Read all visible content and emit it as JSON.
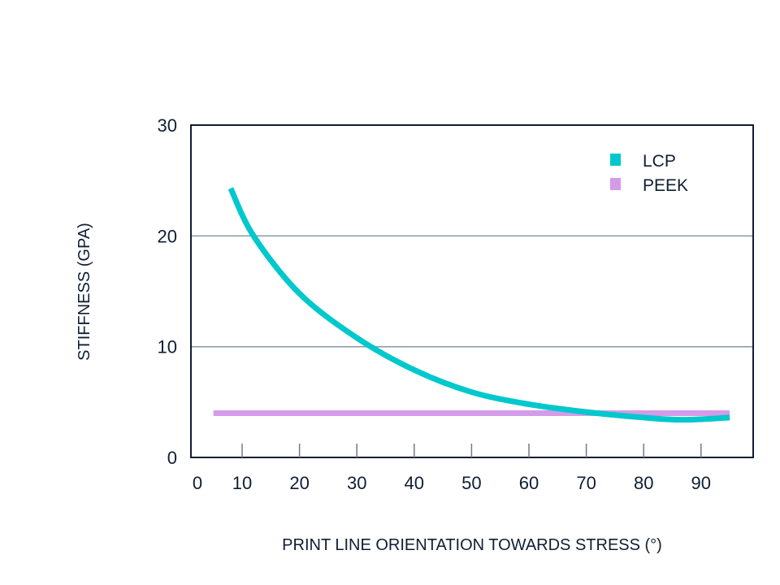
{
  "chart_data": {
    "type": "line",
    "title": "",
    "xlabel": "PRINT LINE ORIENTATION TOWARDS STRESS (°)",
    "ylabel": "STIFFNESS (GPA)",
    "xlim": [
      1,
      99
    ],
    "ylim": [
      0,
      30
    ],
    "xticks": [
      0,
      10,
      20,
      30,
      40,
      50,
      60,
      70,
      80,
      90
    ],
    "yticks": [
      0,
      10,
      20,
      30
    ],
    "grid": "horizontal",
    "legend_position": "top-right",
    "series": [
      {
        "name": "LCP",
        "color": "#00c8cc",
        "x": [
          8,
          12,
          20,
          30,
          40,
          50,
          60,
          70,
          80,
          87,
          95
        ],
        "y": [
          24.3,
          20,
          14.8,
          10.8,
          7.9,
          5.9,
          4.8,
          4.1,
          3.6,
          3.4,
          3.6
        ]
      },
      {
        "name": "PEEK",
        "color": "#d49be8",
        "x": [
          5,
          95
        ],
        "y": [
          4,
          4
        ]
      }
    ]
  }
}
